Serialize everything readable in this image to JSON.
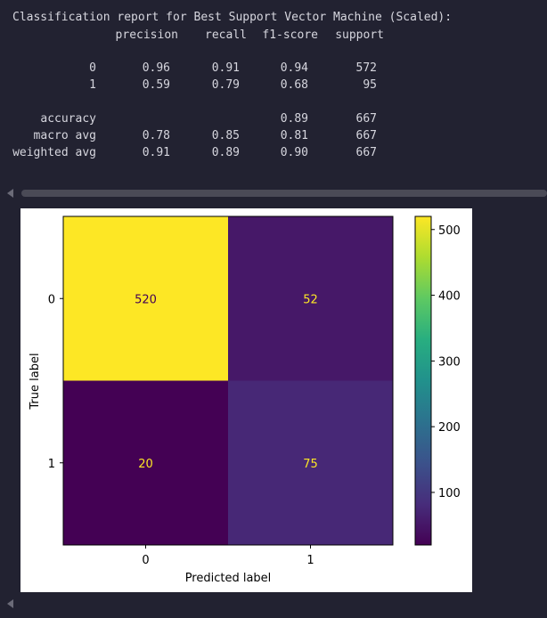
{
  "report": {
    "title": "Classification report for Best Support Vector Machine (Scaled):",
    "headers": [
      "precision",
      "recall",
      "f1-score",
      "support"
    ],
    "rows": [
      {
        "label": "0",
        "precision": "0.96",
        "recall": "0.91",
        "f1": "0.94",
        "support": "572"
      },
      {
        "label": "1",
        "precision": "0.59",
        "recall": "0.79",
        "f1": "0.68",
        "support": "95"
      },
      {
        "label": "accuracy",
        "precision": "",
        "recall": "",
        "f1": "0.89",
        "support": "667"
      },
      {
        "label": "macro avg",
        "precision": "0.78",
        "recall": "0.85",
        "f1": "0.81",
        "support": "667"
      },
      {
        "label": "weighted avg",
        "precision": "0.91",
        "recall": "0.89",
        "f1": "0.90",
        "support": "667"
      }
    ]
  },
  "colors": {
    "background": "#222231",
    "report_text": "#d6d6de",
    "cell_high": "#fde725",
    "cell_low": "#440154"
  },
  "chart_data": {
    "type": "heatmap",
    "title": "",
    "xlabel": "Predicted label",
    "ylabel": "True label",
    "x_categories": [
      "0",
      "1"
    ],
    "y_categories": [
      "0",
      "1"
    ],
    "matrix": [
      [
        520,
        52
      ],
      [
        20,
        75
      ]
    ],
    "colorbar": {
      "colormap": "viridis",
      "range": [
        20,
        520
      ],
      "ticks": [
        100,
        200,
        300,
        400,
        500
      ]
    }
  }
}
